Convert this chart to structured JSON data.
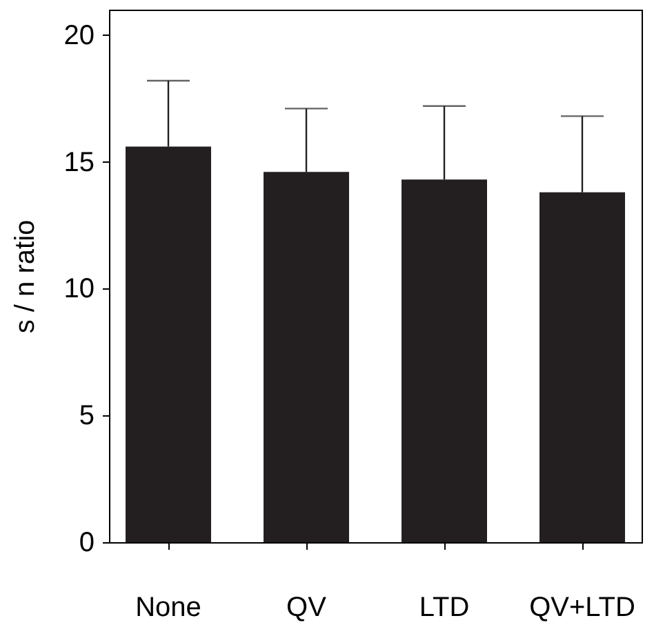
{
  "chart_data": {
    "type": "bar",
    "ylabel": "s / n ratio",
    "categories": [
      "None",
      "QV",
      "LTD",
      "QV+LTD"
    ],
    "values": [
      15.6,
      14.6,
      14.3,
      13.8
    ],
    "errors": [
      [
        15.6,
        18.2
      ],
      [
        14.6,
        17.1
      ],
      [
        14.3,
        17.2
      ],
      [
        13.8,
        16.8
      ]
    ],
    "color": "#231f20",
    "ylim": [
      0,
      21
    ],
    "yticks": [
      0,
      5,
      10,
      15,
      20
    ],
    "grid": false
  }
}
